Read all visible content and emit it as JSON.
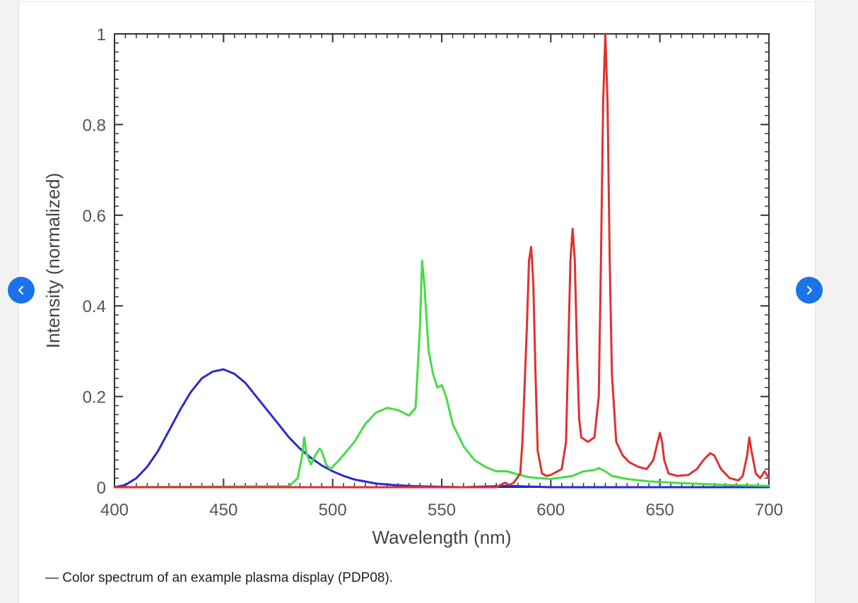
{
  "carousel": {
    "prev_icon": "chevron-left-icon",
    "next_icon": "chevron-right-icon",
    "accent": "#1a73e8"
  },
  "caption": "— Color spectrum of an example plasma display (PDP08).",
  "chart_data": {
    "type": "line",
    "title": "",
    "xlabel": "Wavelength (nm)",
    "ylabel": "Intensity (normalized)",
    "xlim": [
      400,
      700
    ],
    "ylim": [
      0,
      1
    ],
    "x_tick_labels": [
      "400",
      "450",
      "500",
      "550",
      "600",
      "650",
      "700"
    ],
    "y_tick_labels": [
      "0",
      "0.2",
      "0.4",
      "0.6",
      "0.8",
      "1"
    ],
    "grid": false,
    "series": [
      {
        "color": "#2a2ad0",
        "x": [
          400,
          405,
          410,
          415,
          420,
          425,
          430,
          435,
          440,
          445,
          450,
          455,
          460,
          465,
          470,
          475,
          480,
          485,
          490,
          495,
          500,
          505,
          510,
          520,
          530,
          540,
          550,
          560,
          580,
          600,
          650,
          700
        ],
        "y": [
          0.0,
          0.005,
          0.02,
          0.045,
          0.08,
          0.125,
          0.17,
          0.21,
          0.24,
          0.255,
          0.26,
          0.25,
          0.23,
          0.2,
          0.17,
          0.14,
          0.11,
          0.085,
          0.065,
          0.048,
          0.035,
          0.025,
          0.017,
          0.008,
          0.004,
          0.002,
          0.001,
          0.0,
          0.003,
          0.0,
          0.0,
          0.0
        ]
      },
      {
        "color": "#44dd44",
        "x": [
          400,
          480,
          484,
          486,
          487,
          488,
          490,
          492,
          494,
          495,
          497,
          499,
          503,
          510,
          515,
          520,
          525,
          530,
          535,
          538,
          540,
          541,
          542,
          544,
          546,
          548,
          550,
          552,
          555,
          560,
          565,
          570,
          575,
          580,
          585,
          590,
          600,
          610,
          615,
          620,
          622,
          625,
          628,
          635,
          645,
          660,
          680,
          700
        ],
        "y": [
          0.0,
          0.002,
          0.02,
          0.07,
          0.11,
          0.075,
          0.05,
          0.07,
          0.085,
          0.08,
          0.05,
          0.04,
          0.06,
          0.1,
          0.14,
          0.165,
          0.175,
          0.17,
          0.158,
          0.175,
          0.35,
          0.5,
          0.45,
          0.3,
          0.25,
          0.22,
          0.225,
          0.2,
          0.14,
          0.09,
          0.06,
          0.045,
          0.035,
          0.035,
          0.028,
          0.022,
          0.018,
          0.025,
          0.035,
          0.038,
          0.042,
          0.035,
          0.025,
          0.018,
          0.013,
          0.009,
          0.005,
          0.003
        ]
      },
      {
        "color": "#e03030",
        "x": [
          400,
          575,
          579,
          581,
          583,
          586,
          587,
          589,
          590,
          591,
          592,
          593,
          594,
          596,
          598,
          600,
          605,
          607,
          608,
          609,
          610,
          611,
          612,
          613,
          614,
          617,
          620,
          622,
          623,
          624,
          625,
          626,
          627,
          628,
          630,
          633,
          636,
          640,
          644,
          647,
          649,
          650,
          651,
          652,
          654,
          658,
          663,
          667,
          670,
          673,
          675,
          678,
          682,
          686,
          688,
          690,
          691,
          692,
          694,
          696,
          698,
          700
        ],
        "y": [
          0.0,
          0.0,
          0.01,
          0.005,
          0.01,
          0.03,
          0.1,
          0.35,
          0.5,
          0.53,
          0.45,
          0.25,
          0.08,
          0.03,
          0.025,
          0.027,
          0.04,
          0.1,
          0.3,
          0.5,
          0.57,
          0.5,
          0.3,
          0.15,
          0.11,
          0.1,
          0.11,
          0.2,
          0.5,
          0.85,
          1.0,
          0.85,
          0.5,
          0.25,
          0.1,
          0.07,
          0.055,
          0.045,
          0.04,
          0.06,
          0.1,
          0.12,
          0.1,
          0.06,
          0.03,
          0.025,
          0.027,
          0.04,
          0.06,
          0.075,
          0.07,
          0.04,
          0.02,
          0.015,
          0.025,
          0.07,
          0.11,
          0.08,
          0.03,
          0.02,
          0.035,
          0.02
        ]
      }
    ]
  }
}
